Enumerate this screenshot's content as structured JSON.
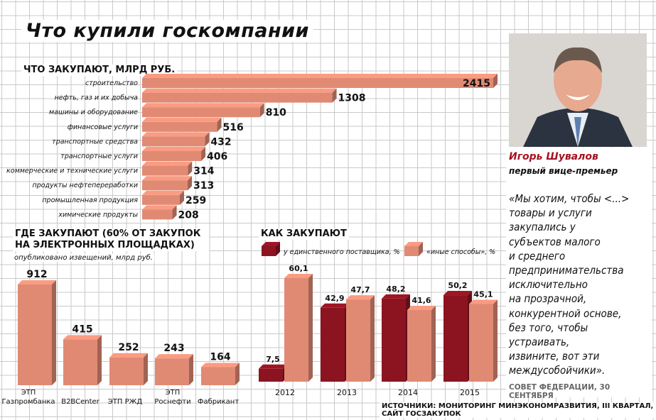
{
  "title": "Что купили госкомпании",
  "chart_data": [
    {
      "type": "bar",
      "orientation": "horizontal",
      "title": "ЧТО ЗАКУПАЮТ, МЛРД РУБ.",
      "categories": [
        "строительство",
        "нефть, газ и их добыча",
        "машины и оборудование",
        "финансовые услуги",
        "транспортные средства",
        "транспортные услуги",
        "коммерческие и технические услуги",
        "продукты нефтепереработки",
        "промышленная продукция",
        "химические продукты"
      ],
      "values": [
        2415,
        1308,
        810,
        516,
        432,
        406,
        314,
        313,
        259,
        208
      ],
      "value_labels": [
        "2415",
        "1308",
        "810",
        "516",
        "432",
        "406",
        "314",
        "313",
        "259",
        "208"
      ],
      "color": "#e08a74"
    },
    {
      "type": "bar",
      "title": "ГДЕ ЗАКУПАЮТ (60% ОТ ЗАКУПОК НА ЭЛЕКТРОННЫХ ПЛОЩАДКАХ)",
      "subtitle": "опубликовано извещений, млрд руб.",
      "categories": [
        "ЭТП Газпромбанка",
        "B2BCenter",
        "ЭТП РЖД",
        "ЭТП Роснефти",
        "Фабрикант"
      ],
      "values": [
        912,
        415,
        252,
        243,
        164
      ],
      "value_labels": [
        "912",
        "415",
        "252",
        "243",
        "164"
      ],
      "color": "#e08a74"
    },
    {
      "type": "bar",
      "title": "КАК ЗАКУПАЮТ",
      "categories": [
        "2012",
        "2013",
        "2014",
        "2015"
      ],
      "series": [
        {
          "name": "у единственного поставщика, %",
          "values": [
            7.5,
            42.9,
            48.2,
            50.2
          ],
          "labels": [
            "7,5",
            "42,9",
            "48,2",
            "50,2"
          ],
          "color": "#8c1420"
        },
        {
          "name": "«иные способы», %",
          "values": [
            60.1,
            47.7,
            41.6,
            45.1
          ],
          "labels": [
            "60,1",
            "47,7",
            "41,6",
            "45,1"
          ],
          "color": "#e08a74"
        }
      ]
    }
  ],
  "quote": {
    "name": "Игорь Шувалов",
    "position": "первый вице-премьер",
    "lines": [
      "«Мы хотим, чтобы <...>",
      "товары и услуги",
      "закупались у",
      "субъектов малого",
      "и среднего",
      "предпринимательства",
      "исключительно",
      "на прозрачной,",
      "конкурентной основе,",
      "без того, чтобы",
      "устраивать,",
      "извините, вот эти",
      "междусобойчики»."
    ],
    "source": "СОВЕТ ФЕДЕРАЦИИ, 30 СЕНТЯБРЯ"
  },
  "sources": "ИСТОЧНИКИ: МОНИТОРИНГ МИНЭКОНОМРАЗВИТИЯ, III КВАРТАЛ, САЙТ ГОСЗАКУПОК"
}
